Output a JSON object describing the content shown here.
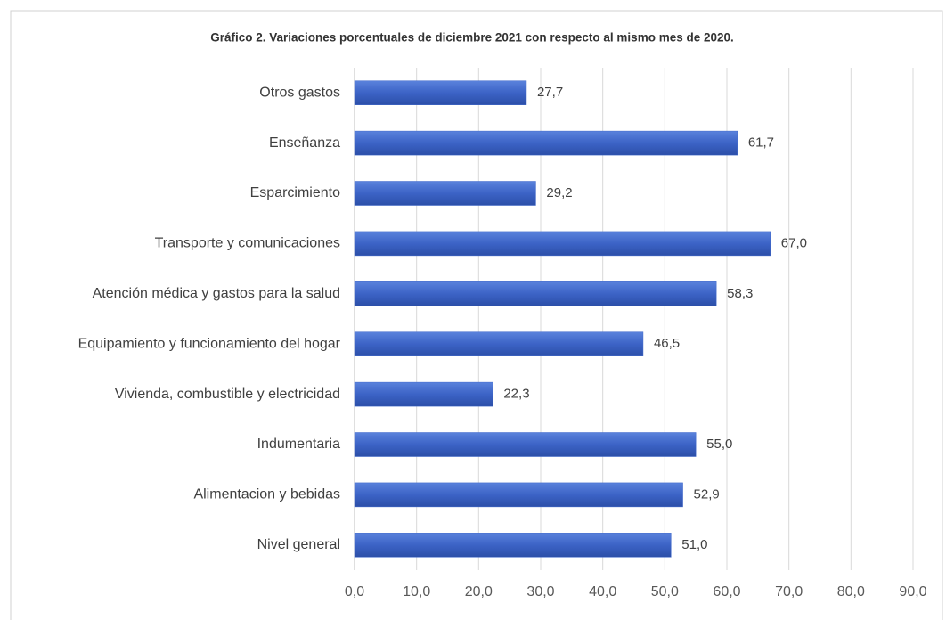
{
  "chart_data": {
    "type": "bar",
    "orientation": "horizontal",
    "title": "Gráfico 2. Variaciones porcentuales de diciembre 2021 con respecto  al mismo mes de 2020.",
    "categories": [
      "Otros gastos",
      "Enseñanza",
      "Esparcimiento",
      "Transporte y comunicaciones",
      "Atención médica y gastos para la salud",
      "Equipamiento y funcionamiento del hogar",
      "Vivienda, combustible y electricidad",
      "Indumentaria",
      "Alimentacion y bebidas",
      "Nivel general"
    ],
    "values": [
      27.7,
      61.7,
      29.2,
      67.0,
      58.3,
      46.5,
      22.3,
      55.0,
      52.9,
      51.0
    ],
    "value_labels": [
      "27,7",
      "61,7",
      "29,2",
      "67,0",
      "58,3",
      "46,5",
      "22,3",
      "55,0",
      "52,9",
      "51,0"
    ],
    "color": "#3d66c9",
    "xlim": [
      0,
      90
    ],
    "xticks": [
      {
        "value": 0,
        "label": "0,0"
      },
      {
        "value": 10,
        "label": "10,0"
      },
      {
        "value": 20,
        "label": "20,0"
      },
      {
        "value": 30,
        "label": "30,0"
      },
      {
        "value": 40,
        "label": "40,0"
      },
      {
        "value": 50,
        "label": "50,0"
      },
      {
        "value": 60,
        "label": "60,0"
      },
      {
        "value": 70,
        "label": "70,0"
      },
      {
        "value": 80,
        "label": "80,0"
      },
      {
        "value": 90,
        "label": "90,0"
      }
    ],
    "grid": true
  }
}
